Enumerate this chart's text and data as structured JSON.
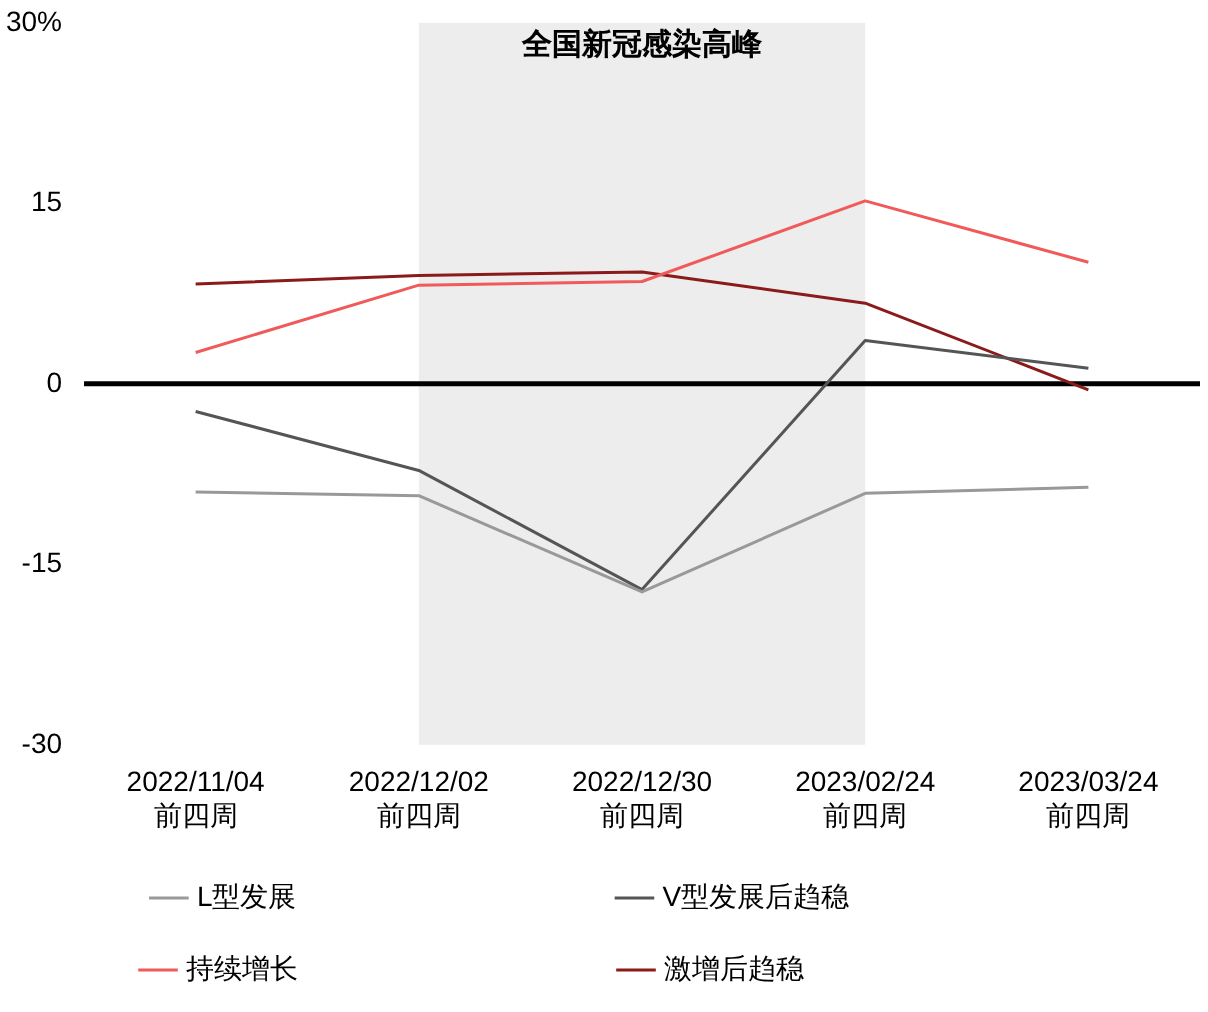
{
  "chart_data": {
    "type": "line",
    "categories": [
      "2022/11/04\n前四周",
      "2022/12/02\n前四周",
      "2022/12/30\n前四周",
      "2023/02/24\n前四周",
      "2023/03/24\n前四周"
    ],
    "series": [
      {
        "name": "L型发展",
        "color": "#999999",
        "values": [
          -9.0,
          -9.3,
          -17.3,
          -9.1,
          -8.6
        ]
      },
      {
        "name": "V型发展后趋稳",
        "color": "#555555",
        "values": [
          -2.3,
          -7.2,
          -17.1,
          3.6,
          1.3
        ]
      },
      {
        "name": "持续增长",
        "color": "#f05a5a",
        "values": [
          2.6,
          8.2,
          8.5,
          15.2,
          10.1
        ]
      },
      {
        "name": "激增后趋稳",
        "color": "#8b1a1a",
        "values": [
          8.3,
          9.0,
          9.3,
          6.7,
          -0.5
        ]
      }
    ],
    "ylim": [
      -30,
      30
    ],
    "yticks": [
      -30,
      -15,
      0,
      15,
      {
        "value": 30,
        "label": "30%"
      }
    ],
    "ref_lines": [
      {
        "axis": "y",
        "value": 0,
        "color": "#000000"
      }
    ],
    "bands": [
      {
        "axis": "x",
        "from": "2022/12/02\n前四周",
        "to": "2023/02/24\n前四周",
        "label": "全国新冠感染高峰",
        "color": "#ededed"
      }
    ],
    "grid": false,
    "legend": "bottom",
    "marker": "none",
    "line_style": "solid"
  }
}
